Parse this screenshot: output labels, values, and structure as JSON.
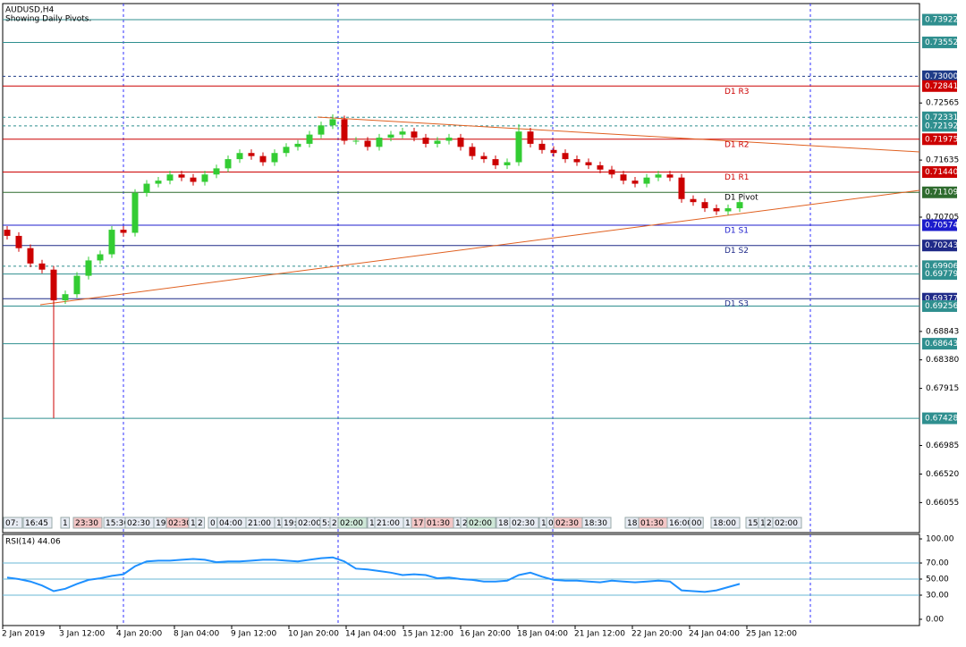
{
  "chart_data": [
    {
      "type": "candlestick",
      "title": "AUDUSD,H4",
      "subtitle": "Showing Daily Pivots.",
      "up_color": "#33cc33",
      "down_color": "#cc0000",
      "ylim": [
        0.6558,
        0.7417
      ],
      "yticks": [
        0.66055,
        {
          "value": 0.6652,
          "label": "0.66520"
        },
        0.66985,
        0.67915,
        {
          "value": 0.6838,
          "label": "0.68380"
        },
        0.68843,
        0.70705,
        0.71635,
        0.72565
      ],
      "open": [
        0.705,
        0.704,
        0.702,
        0.6995,
        0.6985,
        0.6935,
        0.6945,
        0.6975,
        0.7,
        0.701,
        0.705,
        0.7045,
        0.711,
        0.7125,
        0.713,
        0.714,
        0.7135,
        0.7128,
        0.714,
        0.715,
        0.7165,
        0.7175,
        0.717,
        0.716,
        0.7175,
        0.7185,
        0.719,
        0.7205,
        0.722,
        0.723,
        0.7195,
        0.7195,
        0.7185,
        0.72,
        0.7205,
        0.721,
        0.72,
        0.719,
        0.7195,
        0.72,
        0.7185,
        0.717,
        0.7165,
        0.7155,
        0.716,
        0.721,
        0.719,
        0.718,
        0.7175,
        0.7165,
        0.716,
        0.7155,
        0.7148,
        0.714,
        0.713,
        0.7125,
        0.7135,
        0.714,
        0.7135,
        0.71,
        0.7095,
        0.7085,
        0.708,
        0.7085
      ],
      "high": [
        0.7056,
        0.7046,
        0.7026,
        0.7001,
        0.6991,
        0.6951,
        0.6981,
        0.7006,
        0.7016,
        0.7056,
        0.7056,
        0.7116,
        0.7131,
        0.7136,
        0.7146,
        0.7146,
        0.7141,
        0.7146,
        0.7156,
        0.7171,
        0.7181,
        0.7181,
        0.7176,
        0.7181,
        0.7191,
        0.7196,
        0.7211,
        0.7226,
        0.7238,
        0.7236,
        0.7201,
        0.7201,
        0.7206,
        0.7211,
        0.7216,
        0.7216,
        0.7206,
        0.7201,
        0.7206,
        0.7206,
        0.7191,
        0.7176,
        0.7171,
        0.7166,
        0.7222,
        0.7216,
        0.7196,
        0.7186,
        0.7181,
        0.7171,
        0.7166,
        0.7161,
        0.7154,
        0.7146,
        0.7136,
        0.7141,
        0.7146,
        0.7146,
        0.7141,
        0.7106,
        0.7101,
        0.7091,
        0.7091,
        0.7101
      ],
      "low": [
        0.7034,
        0.7014,
        0.6989,
        0.6979,
        0.6743,
        0.6929,
        0.6939,
        0.6969,
        0.6994,
        0.7004,
        0.7039,
        0.7039,
        0.7104,
        0.7119,
        0.7124,
        0.7129,
        0.7122,
        0.7122,
        0.7134,
        0.7144,
        0.7159,
        0.7164,
        0.7154,
        0.7154,
        0.7169,
        0.7179,
        0.7184,
        0.7199,
        0.7214,
        0.7189,
        0.7189,
        0.7179,
        0.7179,
        0.7194,
        0.7199,
        0.7194,
        0.7184,
        0.7184,
        0.7189,
        0.7179,
        0.7164,
        0.7159,
        0.7149,
        0.7149,
        0.7154,
        0.7184,
        0.7174,
        0.7169,
        0.7159,
        0.7154,
        0.7149,
        0.7142,
        0.7134,
        0.7124,
        0.7119,
        0.7119,
        0.7129,
        0.7129,
        0.7094,
        0.7089,
        0.7079,
        0.7074,
        0.7074,
        0.7079
      ],
      "close": [
        0.704,
        0.702,
        0.6995,
        0.6985,
        0.6935,
        0.6945,
        0.6975,
        0.7,
        0.701,
        0.705,
        0.7045,
        0.711,
        0.7125,
        0.713,
        0.714,
        0.7135,
        0.7128,
        0.714,
        0.715,
        0.7165,
        0.7175,
        0.717,
        0.716,
        0.7175,
        0.7185,
        0.719,
        0.7205,
        0.722,
        0.723,
        0.7195,
        0.7195,
        0.7185,
        0.72,
        0.7205,
        0.721,
        0.72,
        0.719,
        0.7195,
        0.72,
        0.7185,
        0.717,
        0.7165,
        0.7155,
        0.716,
        0.721,
        0.719,
        0.718,
        0.7175,
        0.7165,
        0.716,
        0.7155,
        0.7148,
        0.714,
        0.713,
        0.7125,
        0.7135,
        0.714,
        0.7135,
        0.71,
        0.7095,
        0.7085,
        0.708,
        0.7085,
        0.7095
      ],
      "levels": [
        {
          "value": 0.73922,
          "label": "0.73922",
          "color": "#2f8f8f"
        },
        {
          "value": 0.73552,
          "label": "0.73552",
          "color": "#2f8f8f"
        },
        {
          "value": 0.73,
          "label": "0.73000",
          "color": "#1f3c88",
          "dashed": true
        },
        {
          "value": 0.72841,
          "label": "0.72841",
          "color": "#cc0000",
          "pivot": "D1 R3"
        },
        {
          "value": 0.72331,
          "label": "0.72331",
          "color": "#2f8f8f",
          "dashed": true
        },
        {
          "value": 0.72192,
          "label": "0.72192",
          "color": "#2f8f8f",
          "dashed": true
        },
        {
          "value": 0.71975,
          "label": "0.71975",
          "color": "#cc0000",
          "pivot": "D1 R2"
        },
        {
          "value": 0.7144,
          "label": "0.71440",
          "color": "#cc0000",
          "pivot": "D1 R1"
        },
        {
          "value": 0.71109,
          "label": "0.71109",
          "color": "#2e6b2e",
          "pivot": "D1 Pivot"
        },
        {
          "value": 0.70574,
          "label": "0.70574",
          "color": "#1c1ccc",
          "pivot": "D1 S1"
        },
        {
          "value": 0.70243,
          "label": "0.70243",
          "color": "#1f2a88",
          "pivot": "D1 S2"
        },
        {
          "value": 0.69906,
          "label": "0.69906",
          "color": "#2f8f8f",
          "dashed": true
        },
        {
          "value": 0.69779,
          "label": "0.69779",
          "color": "#2f8f8f"
        },
        {
          "value": 0.69377,
          "label": "0.69377",
          "color": "#1f2a88",
          "pivot": "D1 S3"
        },
        {
          "value": 0.69256,
          "label": "0.69256",
          "color": "#2f8f8f"
        },
        {
          "value": 0.68643,
          "label": "0.68643",
          "color": "#2f8f8f"
        },
        {
          "value": 0.67428,
          "label": "0.67428",
          "color": "#2f8f8f"
        }
      ],
      "session_labels": [
        "07:",
        "16:45",
        "1",
        "23:30",
        "15:30",
        "02:30",
        "19:",
        "02:30",
        "1",
        "2",
        "0",
        "04:00",
        "21:00",
        "1",
        "19:",
        "02:00",
        "5:",
        "2",
        "02:00",
        "1",
        "21:00",
        "1",
        "17:",
        "01:30",
        "1",
        "2",
        "02:00",
        "18:",
        "02:30",
        "1",
        "0",
        "02:30",
        "18:30",
        "18:",
        "01:30",
        "16:00",
        "00",
        "18:00",
        "15",
        "1",
        "2",
        "02:00"
      ],
      "x_labels": [
        "2 Jan 2019",
        "3 Jan 12:00",
        "4 Jan 20:00",
        "8 Jan 04:00",
        "9 Jan 12:00",
        "10 Jan 20:00",
        "14 Jan 04:00",
        "15 Jan 12:00",
        "16 Jan 20:00",
        "18 Jan 04:00",
        "21 Jan 12:00",
        "22 Jan 20:00",
        "24 Jan 04:00",
        "25 Jan 12:00"
      ]
    },
    {
      "type": "line",
      "title": "RSI(14) 44.06",
      "color": "#1e90ff",
      "ylim": [
        -7.8,
        105.6
      ],
      "yticks": [
        {
          "value": 0,
          "label": "0.00"
        },
        {
          "value": 30,
          "label": "30.00"
        },
        {
          "value": 50,
          "label": "50.00"
        },
        {
          "value": 70,
          "label": "70.00"
        },
        {
          "value": 100,
          "label": "100.00"
        }
      ],
      "levels": [
        30,
        50,
        70
      ],
      "values": [
        52,
        50,
        47,
        42,
        35,
        38,
        44,
        49,
        51,
        54,
        56,
        66,
        72,
        73,
        73,
        74,
        75,
        74,
        71,
        72,
        72,
        73,
        74,
        74,
        73,
        72,
        74,
        76,
        77,
        72,
        63,
        62,
        60,
        58,
        55,
        56,
        55,
        51,
        52,
        50,
        49,
        47,
        47,
        48,
        55,
        58,
        53,
        49,
        48,
        48,
        47,
        46,
        48,
        47,
        46,
        47,
        48,
        47,
        36,
        35,
        34,
        36,
        40,
        44.06
      ]
    }
  ]
}
